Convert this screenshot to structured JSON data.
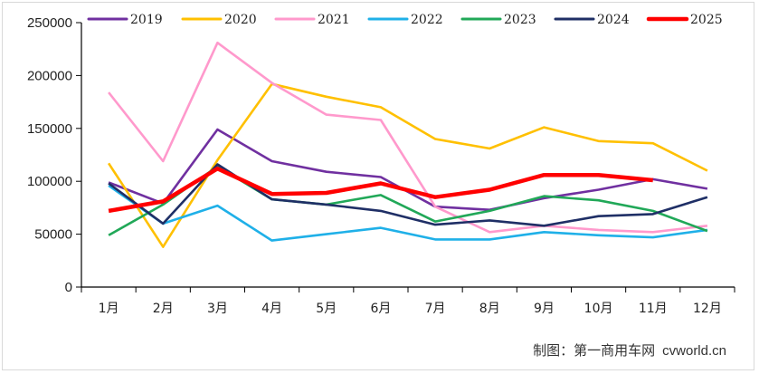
{
  "chart_data": {
    "type": "line",
    "title": "",
    "xlabel": "",
    "ylabel": "",
    "categories": [
      "1月",
      "2月",
      "3月",
      "4月",
      "5月",
      "6月",
      "7月",
      "8月",
      "9月",
      "10月",
      "11月",
      "12月"
    ],
    "ylim": [
      0,
      250000
    ],
    "yticks": [
      0,
      50000,
      100000,
      150000,
      200000,
      250000
    ],
    "ytick_labels": [
      "0",
      "50000",
      "100000",
      "150000",
      "200000",
      "250000"
    ],
    "grid": false,
    "legend_position": "top",
    "series": [
      {
        "name": "2019",
        "color": "#7030a0",
        "values": [
          99000,
          79000,
          149000,
          119000,
          109000,
          104000,
          76000,
          73000,
          84000,
          92000,
          102000,
          93000
        ]
      },
      {
        "name": "2020",
        "color": "#ffc000",
        "values": [
          117000,
          38000,
          120000,
          192000,
          180000,
          170000,
          140000,
          131000,
          151000,
          138000,
          136000,
          110000
        ]
      },
      {
        "name": "2021",
        "color": "#ff99cc",
        "values": [
          184000,
          119000,
          231000,
          193000,
          163000,
          158000,
          76000,
          52000,
          58000,
          54000,
          52000,
          58000
        ]
      },
      {
        "name": "2022",
        "color": "#1fb0e8",
        "values": [
          96000,
          60000,
          77000,
          44000,
          50000,
          56000,
          45000,
          45000,
          52000,
          49000,
          47000,
          54000
        ]
      },
      {
        "name": "2023",
        "color": "#21a858",
        "values": [
          49000,
          78000,
          114000,
          83000,
          78000,
          87000,
          62000,
          72000,
          86000,
          82000,
          72000,
          53000
        ]
      },
      {
        "name": "2024",
        "color": "#1f2f66",
        "values": [
          98000,
          60000,
          116000,
          83000,
          78000,
          72000,
          59000,
          63000,
          58000,
          67000,
          69000,
          85000
        ]
      },
      {
        "name": "2025",
        "color": "#ff0000",
        "values": [
          72000,
          81000,
          112000,
          88000,
          89000,
          98000,
          85000,
          92000,
          106000,
          106000,
          101000,
          null
        ]
      }
    ]
  },
  "credit": {
    "label": "制图：第一商用车网",
    "site": "cvworld.cn"
  }
}
